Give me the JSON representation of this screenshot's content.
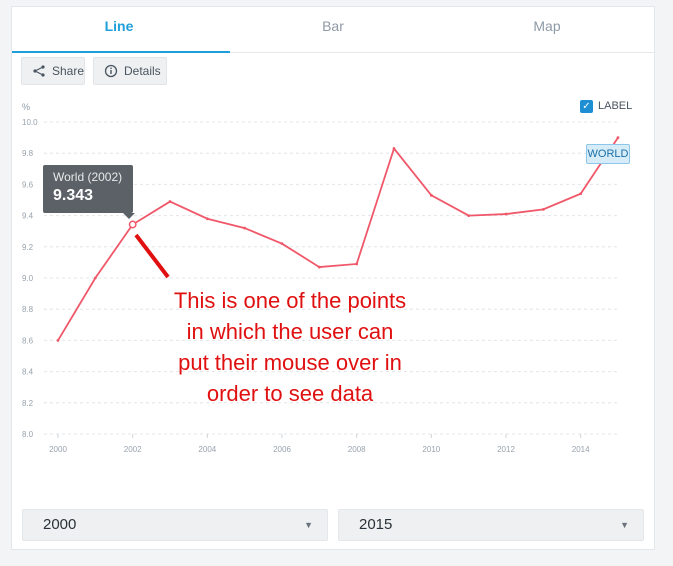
{
  "tabs": [
    {
      "label": "Line",
      "active": true
    },
    {
      "label": "Bar",
      "active": false
    },
    {
      "label": "Map",
      "active": false
    }
  ],
  "toolbar": {
    "share_label": "Share",
    "details_label": "Details"
  },
  "label_toggle": {
    "label": "LABEL",
    "checked": true
  },
  "series_tag": "WORLD",
  "tooltip": {
    "title": "World (2002)",
    "value": "9.343"
  },
  "annotation": "This is one of the points in which the user can put their mouse over in order to see data",
  "range": {
    "start": "2000",
    "end": "2015"
  },
  "colors": {
    "accent": "#1f9fd9",
    "line": "#f0586a",
    "annotation": "#e01010"
  },
  "chart_data": {
    "type": "line",
    "ylabel": "%",
    "ylim": [
      8.0,
      10.0
    ],
    "yticks": [
      "10.0",
      "9.8",
      "9.6",
      "9.4",
      "9.2",
      "9.0",
      "8.8",
      "8.6",
      "8.4",
      "8.2",
      "8.0"
    ],
    "xticks": [
      "2000",
      "2002",
      "2004",
      "2006",
      "2008",
      "2010",
      "2012",
      "2014"
    ],
    "grid": true,
    "series": [
      {
        "name": "WORLD",
        "x": [
          2000,
          2001,
          2002,
          2003,
          2004,
          2005,
          2006,
          2007,
          2008,
          2009,
          2010,
          2011,
          2012,
          2013,
          2014,
          2015
        ],
        "y": [
          8.6,
          9.0,
          9.343,
          9.49,
          9.38,
          9.32,
          9.22,
          9.07,
          9.09,
          9.83,
          9.53,
          9.4,
          9.41,
          9.44,
          9.54,
          9.9
        ]
      }
    ]
  }
}
